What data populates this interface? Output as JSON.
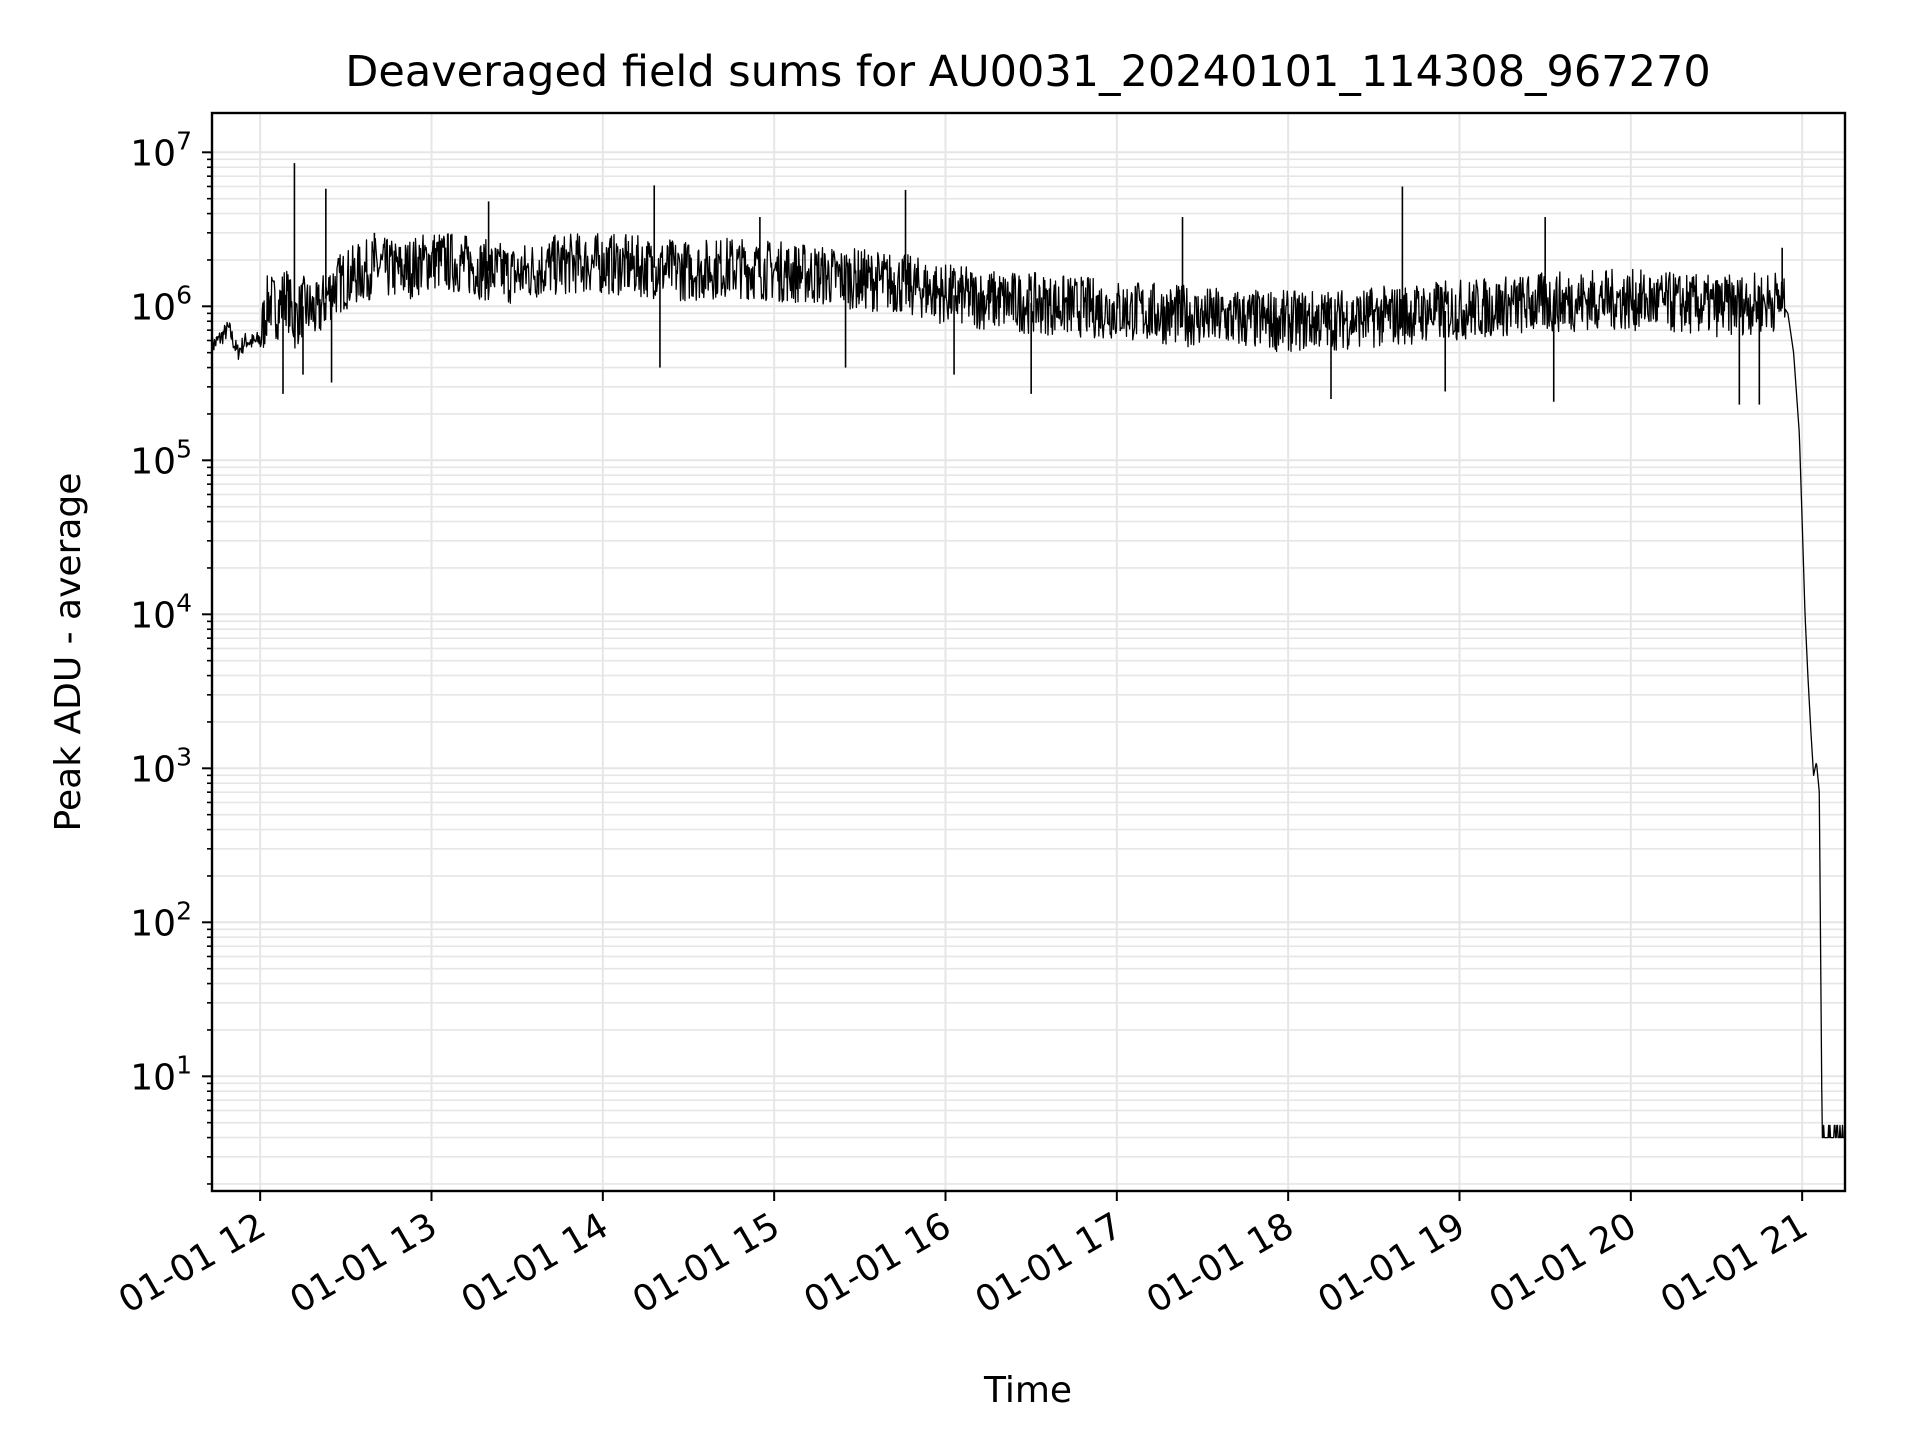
{
  "chart_data": {
    "type": "line",
    "title": "Deaveraged field sums for AU0031_20240101_114308_967270",
    "xlabel": "Time",
    "ylabel": "Peak ADU - average",
    "yscale": "log",
    "ylim": [
      1.8,
      18000000
    ],
    "xlim": [
      "2024-01-01T11:43:08",
      "2024-01-01T21:15:00"
    ],
    "grid": true,
    "x_ticks": [
      "2024-01-01T12:00",
      "2024-01-01T13:00",
      "2024-01-01T14:00",
      "2024-01-01T15:00",
      "2024-01-01T16:00",
      "2024-01-01T17:00",
      "2024-01-01T18:00",
      "2024-01-01T19:00",
      "2024-01-01T20:00",
      "2024-01-01T21:00"
    ],
    "x_tick_labels": [
      "01-01 12",
      "01-01 13",
      "01-01 14",
      "01-01 15",
      "01-01 16",
      "01-01 17",
      "01-01 18",
      "01-01 19",
      "01-01 20",
      "01-01 21"
    ],
    "y_ticks": [
      {
        "value": 10,
        "base": "10",
        "exp": "1"
      },
      {
        "value": 100,
        "base": "10",
        "exp": "2"
      },
      {
        "value": 1000,
        "base": "10",
        "exp": "3"
      },
      {
        "value": 10000,
        "base": "10",
        "exp": "4"
      },
      {
        "value": 100000,
        "base": "10",
        "exp": "5"
      },
      {
        "value": 1000000,
        "base": "10",
        "exp": "6"
      },
      {
        "value": 10000000,
        "base": "10",
        "exp": "7"
      }
    ],
    "series": [
      {
        "color": "#000000",
        "points": [
          [
            "2024-01-01T11:43:08",
            550000
          ],
          [
            "2024-01-01T11:46:00",
            620000
          ],
          [
            "2024-01-01T11:49:00",
            720000
          ],
          [
            "2024-01-01T11:52:00",
            500000
          ],
          [
            "2024-01-01T11:55:00",
            600000
          ],
          [
            "2024-01-01T11:58:00",
            580000
          ],
          [
            "2024-01-01T12:00:00",
            620000
          ],
          [
            "2024-01-01T12:03:00",
            1100000
          ],
          [
            "2024-01-01T12:06:00",
            950000
          ],
          [
            "2024-01-01T12:09:00",
            1200000
          ],
          [
            "2024-01-01T12:12:00",
            800000
          ],
          [
            "2024-01-01T12:15:00",
            1000000
          ],
          [
            "2024-01-01T12:20:00",
            900000
          ],
          [
            "2024-01-01T12:25:00",
            1300000
          ],
          [
            "2024-01-01T12:30:00",
            1500000
          ],
          [
            "2024-01-01T12:40:00",
            1800000
          ],
          [
            "2024-01-01T12:50:00",
            1700000
          ],
          [
            "2024-01-01T13:00:00",
            2000000
          ],
          [
            "2024-01-01T13:10:00",
            1900000
          ],
          [
            "2024-01-01T13:20:00",
            1700000
          ],
          [
            "2024-01-01T13:30:00",
            1600000
          ],
          [
            "2024-01-01T13:40:00",
            1800000
          ],
          [
            "2024-01-01T13:50:00",
            1900000
          ],
          [
            "2024-01-01T14:00:00",
            1900000
          ],
          [
            "2024-01-01T14:15:00",
            1800000
          ],
          [
            "2024-01-01T14:30:00",
            1700000
          ],
          [
            "2024-01-01T14:45:00",
            1800000
          ],
          [
            "2024-01-01T15:00:00",
            1700000
          ],
          [
            "2024-01-01T15:15:00",
            1600000
          ],
          [
            "2024-01-01T15:30:00",
            1500000
          ],
          [
            "2024-01-01T15:45:00",
            1400000
          ],
          [
            "2024-01-01T16:00:00",
            1200000
          ],
          [
            "2024-01-01T16:15:00",
            1100000
          ],
          [
            "2024-01-01T16:30:00",
            1050000
          ],
          [
            "2024-01-01T16:45:00",
            1000000
          ],
          [
            "2024-01-01T17:00:00",
            950000
          ],
          [
            "2024-01-01T17:15:00",
            900000
          ],
          [
            "2024-01-01T17:30:00",
            850000
          ],
          [
            "2024-01-01T17:45:00",
            820000
          ],
          [
            "2024-01-01T18:00:00",
            800000
          ],
          [
            "2024-01-01T18:15:00",
            820000
          ],
          [
            "2024-01-01T18:30:00",
            850000
          ],
          [
            "2024-01-01T18:45:00",
            900000
          ],
          [
            "2024-01-01T19:00:00",
            950000
          ],
          [
            "2024-01-01T19:15:00",
            1000000
          ],
          [
            "2024-01-01T19:30:00",
            1050000
          ],
          [
            "2024-01-01T19:45:00",
            1100000
          ],
          [
            "2024-01-01T20:00:00",
            1100000
          ],
          [
            "2024-01-01T20:15:00",
            1050000
          ],
          [
            "2024-01-01T20:30:00",
            1000000
          ],
          [
            "2024-01-01T20:45:00",
            1050000
          ],
          [
            "2024-01-01T20:52:00",
            1100000
          ],
          [
            "2024-01-01T20:55:00",
            900000
          ],
          [
            "2024-01-01T20:57:00",
            500000
          ],
          [
            "2024-01-01T20:59:00",
            150000
          ],
          [
            "2024-01-01T21:00:00",
            40000
          ],
          [
            "2024-01-01T21:01:00",
            10000
          ],
          [
            "2024-01-01T21:02:00",
            4000
          ],
          [
            "2024-01-01T21:03:00",
            1800
          ],
          [
            "2024-01-01T21:04:00",
            900
          ],
          [
            "2024-01-01T21:05:00",
            1100
          ],
          [
            "2024-01-01T21:06:00",
            700
          ],
          [
            "2024-01-01T21:07:00",
            4
          ],
          [
            "2024-01-01T21:15:00",
            4
          ]
        ],
        "spikes": [
          [
            "2024-01-01T12:12:00",
            8500000
          ],
          [
            "2024-01-01T12:23:00",
            5800000
          ],
          [
            "2024-01-01T12:40:00",
            3000000
          ],
          [
            "2024-01-01T13:20:00",
            4800000
          ],
          [
            "2024-01-01T14:18:00",
            6100000
          ],
          [
            "2024-01-01T14:55:00",
            3800000
          ],
          [
            "2024-01-01T15:46:00",
            5700000
          ],
          [
            "2024-01-01T17:23:00",
            3800000
          ],
          [
            "2024-01-01T18:40:00",
            6000000
          ],
          [
            "2024-01-01T19:30:00",
            3800000
          ],
          [
            "2024-01-01T20:53:00",
            2400000
          ]
        ],
        "dips": [
          [
            "2024-01-01T12:08:00",
            270000
          ],
          [
            "2024-01-01T12:15:00",
            360000
          ],
          [
            "2024-01-01T12:25:00",
            320000
          ],
          [
            "2024-01-01T14:20:00",
            400000
          ],
          [
            "2024-01-01T15:25:00",
            400000
          ],
          [
            "2024-01-01T16:03:00",
            360000
          ],
          [
            "2024-01-01T16:30:00",
            270000
          ],
          [
            "2024-01-01T18:15:00",
            250000
          ],
          [
            "2024-01-01T18:55:00",
            280000
          ],
          [
            "2024-01-01T19:33:00",
            240000
          ],
          [
            "2024-01-01T20:38:00",
            230000
          ],
          [
            "2024-01-01T20:45:00",
            230000
          ]
        ]
      }
    ]
  }
}
